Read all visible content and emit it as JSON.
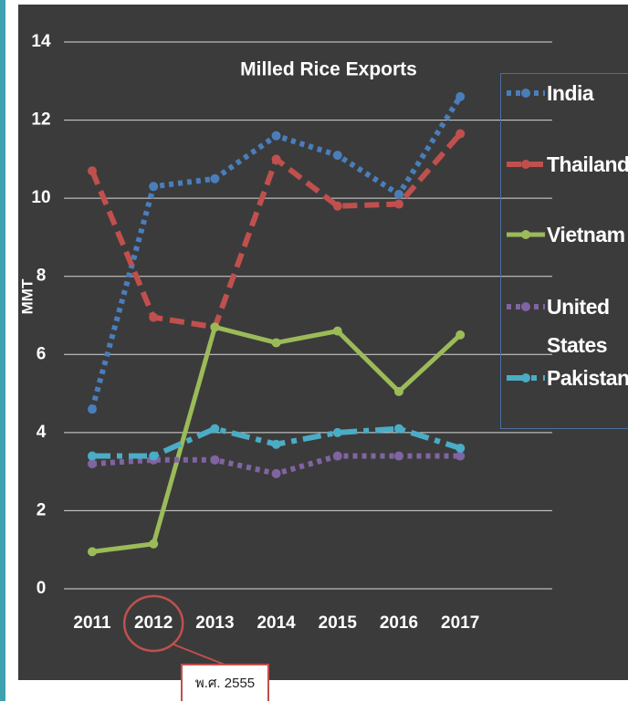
{
  "chart_data": {
    "type": "line",
    "title": "Milled Rice Exports",
    "y_label": "MMT",
    "categories": [
      "2011",
      "2012",
      "2013",
      "2014",
      "2015",
      "2016",
      "2017"
    ],
    "ylim": [
      0,
      14
    ],
    "yticks": [
      0,
      2,
      4,
      6,
      8,
      10,
      12,
      14
    ],
    "grid": true,
    "series": [
      {
        "name": "India",
        "color": "#4a7ebb",
        "style": "dotted",
        "values": [
          4.6,
          10.3,
          10.5,
          11.6,
          11.1,
          10.1,
          12.6
        ]
      },
      {
        "name": "Thailand",
        "color": "#c0504d",
        "style": "dashed",
        "values": [
          10.7,
          6.95,
          6.7,
          11.0,
          9.8,
          9.85,
          11.65
        ]
      },
      {
        "name": "Vietnam",
        "color": "#9bbb59",
        "style": "solid",
        "values": [
          0.95,
          1.15,
          6.7,
          6.3,
          6.6,
          5.05,
          6.5
        ]
      },
      {
        "name": "United States",
        "color": "#8064a2",
        "style": "dotted",
        "values": [
          3.2,
          3.3,
          3.3,
          2.95,
          3.4,
          3.4,
          3.4
        ]
      },
      {
        "name": "Pakistan",
        "color": "#4bacc6",
        "style": "dashdot",
        "values": [
          3.4,
          3.4,
          4.1,
          3.7,
          4.0,
          4.1,
          3.6
        ]
      }
    ],
    "annotation": "พ.ศ. 2555",
    "annotation_category": 1
  }
}
